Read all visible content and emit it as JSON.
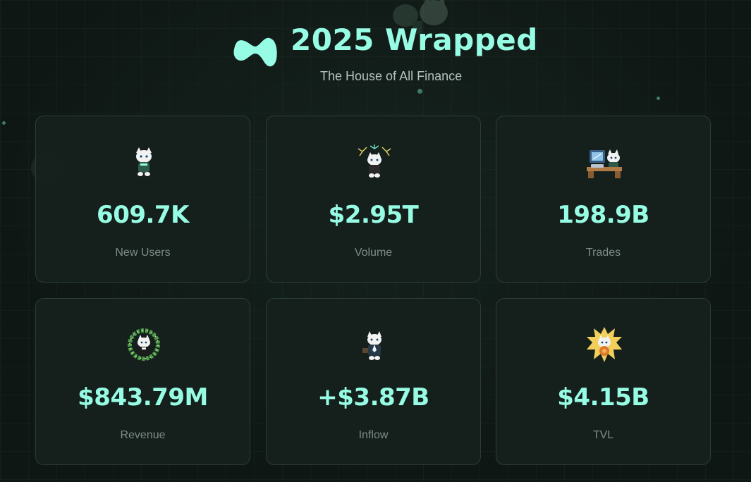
{
  "header": {
    "title": "2025 Wrapped",
    "subtitle": "The House of All Finance",
    "logo_icon": "hyperliquid-logo-icon"
  },
  "stats": [
    {
      "value": "609.7K",
      "label": "New Users",
      "icon": "cat-mascot-sitting-icon"
    },
    {
      "value": "$2.95T",
      "label": "Volume",
      "icon": "cat-mascot-fireworks-icon"
    },
    {
      "value": "198.9B",
      "label": "Trades",
      "icon": "cat-mascot-desk-computer-icon"
    },
    {
      "value": "$843.79M",
      "label": "Revenue",
      "icon": "cat-mascot-wreath-icon"
    },
    {
      "value": "+$3.87B",
      "label": "Inflow",
      "icon": "cat-mascot-suit-icon"
    },
    {
      "value": "$4.15B",
      "label": "TVL",
      "icon": "cat-mascot-golden-aura-icon"
    }
  ],
  "colors": {
    "background": "#0f1714",
    "accent": "#97fce4",
    "card_border": "#2b3c35",
    "label": "#7d8c86",
    "subtitle": "#b5c2bd"
  }
}
